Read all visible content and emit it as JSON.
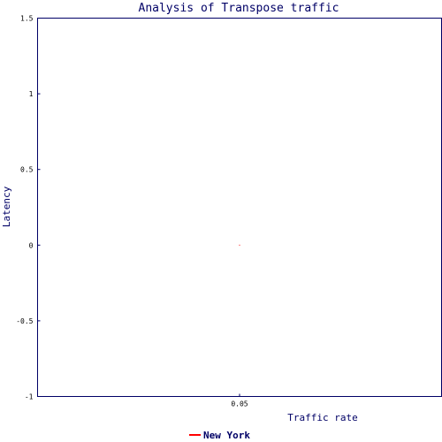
{
  "chart_data": {
    "type": "line",
    "title": "Analysis of Transpose traffic",
    "xlabel": "Traffic rate",
    "ylabel": "Latency",
    "x_ticks": [
      "0.05"
    ],
    "y_ticks": [
      "-1",
      "-0.5",
      "0",
      "0.5",
      "1",
      "1.5"
    ],
    "xlim": [
      0.0,
      0.1
    ],
    "ylim": [
      -1,
      1.5
    ],
    "grid": false,
    "legend_position": "bottom-center",
    "series": [
      {
        "name": "New York",
        "color": "#ff0000",
        "x": [
          0.05
        ],
        "y": [
          0
        ]
      }
    ]
  },
  "colors": {
    "title": "#000066",
    "axis": "#000066",
    "legend_text": "#000066"
  }
}
